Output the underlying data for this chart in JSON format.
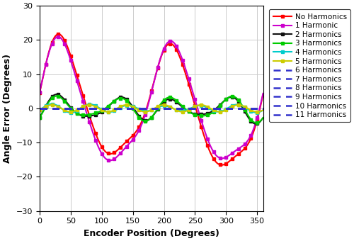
{
  "xlabel": "Encoder Position (Degrees)",
  "ylabel": "Angle Error (Degrees)",
  "xlim": [
    0,
    360
  ],
  "ylim": [
    -30,
    30
  ],
  "xticks": [
    0,
    50,
    100,
    150,
    200,
    250,
    300,
    350
  ],
  "yticks": [
    -30,
    -20,
    -10,
    0,
    10,
    20,
    30
  ],
  "series_names": [
    "No Harmonics",
    "1 Harmonic",
    "2 Harmonics",
    "3 Harmonics",
    "4 Harmonics",
    "5 Harmonics",
    "6 Harmonics",
    "7 Harmonics",
    "8 Harmonics",
    "9 Harmonics",
    "10 Harmonics",
    "11 Harmonics"
  ],
  "colors": [
    "#ff0000",
    "#cc00cc",
    "#111111",
    "#00cc00",
    "#00cccc",
    "#cccc00",
    "#3333cc",
    "#3333cc",
    "#3333cc",
    "#3333cc",
    "#3333cc",
    "#3333cc"
  ],
  "styles": [
    "-",
    "-",
    "-",
    "-",
    "-",
    "-",
    "--",
    "--",
    "--",
    "--",
    "--",
    "--"
  ],
  "lws": [
    1.5,
    1.5,
    1.5,
    1.5,
    1.5,
    1.5,
    1.8,
    1.8,
    1.8,
    1.8,
    1.8,
    1.8
  ],
  "has_marker": [
    true,
    true,
    true,
    true,
    true,
    true,
    false,
    false,
    false,
    false,
    false,
    false
  ],
  "background_color": "#ffffff",
  "grid_color": "#cccccc",
  "figsize": [
    5.0,
    3.4
  ],
  "dpi": 100
}
